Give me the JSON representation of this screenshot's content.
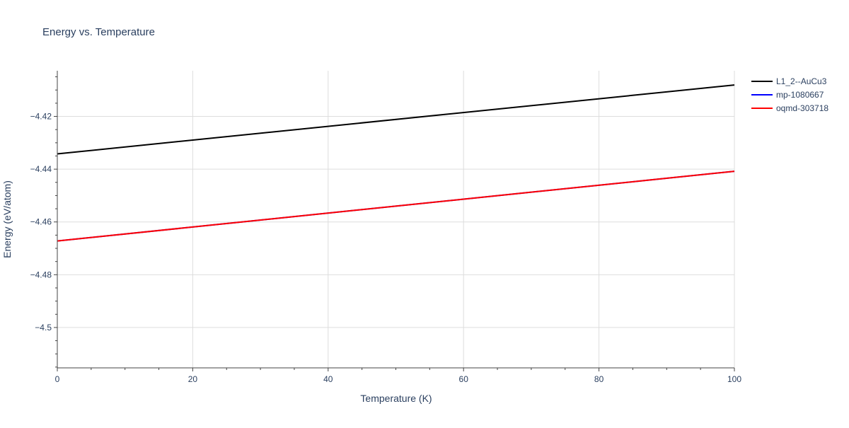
{
  "chart_data": {
    "type": "line",
    "title": "Energy vs. Temperature",
    "xlabel": "Temperature (K)",
    "ylabel": "Energy (eV/atom)",
    "xlim": [
      0,
      100
    ],
    "ylim": [
      -4.5153,
      -4.4027
    ],
    "x_ticks": [
      0,
      20,
      40,
      60,
      80,
      100
    ],
    "x_tick_labels": [
      "0",
      "20",
      "40",
      "60",
      "80",
      "100"
    ],
    "y_ticks": [
      -4.42,
      -4.44,
      -4.46,
      -4.48,
      -4.5
    ],
    "y_tick_labels": [
      "−4.42",
      "−4.44",
      "−4.46",
      "−4.48",
      "−4.5"
    ],
    "grid": true,
    "legend_position": "top-right",
    "series": [
      {
        "name": "L1_2--AuCu3",
        "color": "#000000",
        "x": [
          0,
          100
        ],
        "y": [
          -4.4342,
          -4.4081
        ]
      },
      {
        "name": "mp-1080667",
        "color": "#0000ff",
        "x": [
          0,
          100
        ],
        "y": [
          -4.4672,
          -4.4408
        ]
      },
      {
        "name": "oqmd-303718",
        "color": "#ff0000",
        "x": [
          0,
          100
        ],
        "y": [
          -4.4672,
          -4.4408
        ]
      }
    ]
  }
}
